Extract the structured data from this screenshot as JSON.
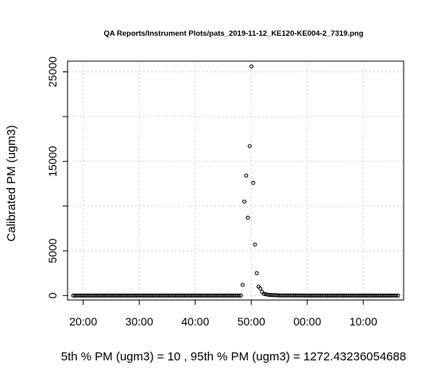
{
  "chart_data": {
    "type": "scatter",
    "title": "QA Reports/Instrument Plots/pats_2019-11-12_KE120-KE004-2_7319.png",
    "xlabel": "",
    "ylabel": "Calibrated PM (ugm3)",
    "x_tick_labels": [
      "20:00",
      "30:00",
      "40:00",
      "50:00",
      "00:00",
      "10:00"
    ],
    "y_tick_labels": [
      "0",
      "5000",
      "15000",
      "25000"
    ],
    "y_ticks": [
      0,
      5000,
      10000,
      15000,
      20000,
      25000
    ],
    "ylim": [
      -500,
      26200
    ],
    "xlim": [
      -1,
      59
    ],
    "grid": true,
    "series": [
      {
        "values": [
          0,
          0,
          0,
          0,
          0,
          0,
          0,
          0,
          0,
          0,
          0,
          0,
          0,
          0,
          0,
          0,
          0,
          0,
          0,
          0,
          0,
          0,
          0,
          0,
          0,
          0,
          0,
          0,
          0,
          0,
          0,
          0,
          0,
          0,
          0,
          0,
          0,
          0,
          0,
          0,
          0,
          0,
          0,
          0,
          0,
          0,
          0,
          0,
          0,
          0,
          0,
          0,
          0,
          0,
          0,
          0,
          0,
          0,
          0,
          0,
          0,
          0,
          0,
          0,
          0,
          0,
          0,
          0,
          0,
          0,
          0,
          0,
          0,
          0,
          0,
          0,
          0,
          0,
          0,
          0,
          0,
          0,
          0,
          0,
          0,
          0,
          0,
          0,
          0,
          0,
          0,
          0,
          0,
          0,
          0,
          0,
          1200,
          10500,
          13400,
          8700,
          16700,
          25600,
          12600,
          5700,
          2500,
          1000,
          800,
          400,
          200,
          150,
          100,
          80,
          60,
          50,
          40,
          30,
          20,
          15,
          10,
          10,
          10,
          10,
          10,
          10,
          10,
          10,
          10,
          10,
          10,
          10,
          10,
          0,
          0,
          0,
          0,
          0,
          0,
          0,
          0,
          0,
          0,
          0,
          0,
          0,
          0,
          0,
          0,
          0,
          0,
          0,
          0,
          0,
          0,
          0,
          0,
          0,
          0,
          0,
          0,
          0,
          0,
          0,
          0,
          0,
          0,
          0,
          0,
          0,
          0,
          0,
          0,
          0,
          0,
          0,
          0,
          0,
          0,
          0,
          0,
          0,
          0,
          0,
          0,
          0,
          0
        ]
      }
    ]
  },
  "caption": {
    "text": "5th % PM (ugm3) =  10 , 95th % PM (ugm3)  =  1272.43236054688"
  }
}
